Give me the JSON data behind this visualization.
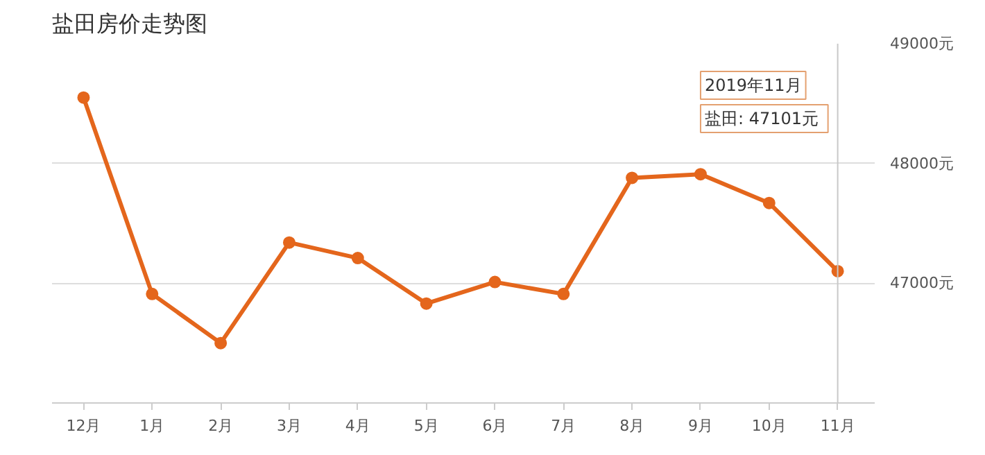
{
  "chart_data": {
    "type": "line",
    "title": "盐田房价走势图",
    "categories": [
      "12月",
      "1月",
      "2月",
      "3月",
      "4月",
      "5月",
      "6月",
      "7月",
      "8月",
      "9月",
      "10月",
      "11月"
    ],
    "series": [
      {
        "color": "#e4661c",
        "values": [
          48550,
          46910,
          46500,
          47340,
          47210,
          46830,
          47010,
          46910,
          47880,
          47910,
          47670,
          47101
        ]
      }
    ],
    "ylim": [
      46000,
      49000
    ],
    "yticks": [
      {
        "value": 47000,
        "label": "47000元"
      },
      {
        "value": 48000,
        "label": "48000元"
      },
      {
        "value": 49000,
        "label": "49000元"
      }
    ],
    "grid": "y",
    "marker": "circle",
    "line_style": "solid",
    "ref_lines": [
      {
        "axis": "x",
        "value": "11月",
        "color": "#c8c8c8"
      }
    ],
    "annotations": [
      "2019年11月",
      "盐田:  47101元"
    ]
  }
}
